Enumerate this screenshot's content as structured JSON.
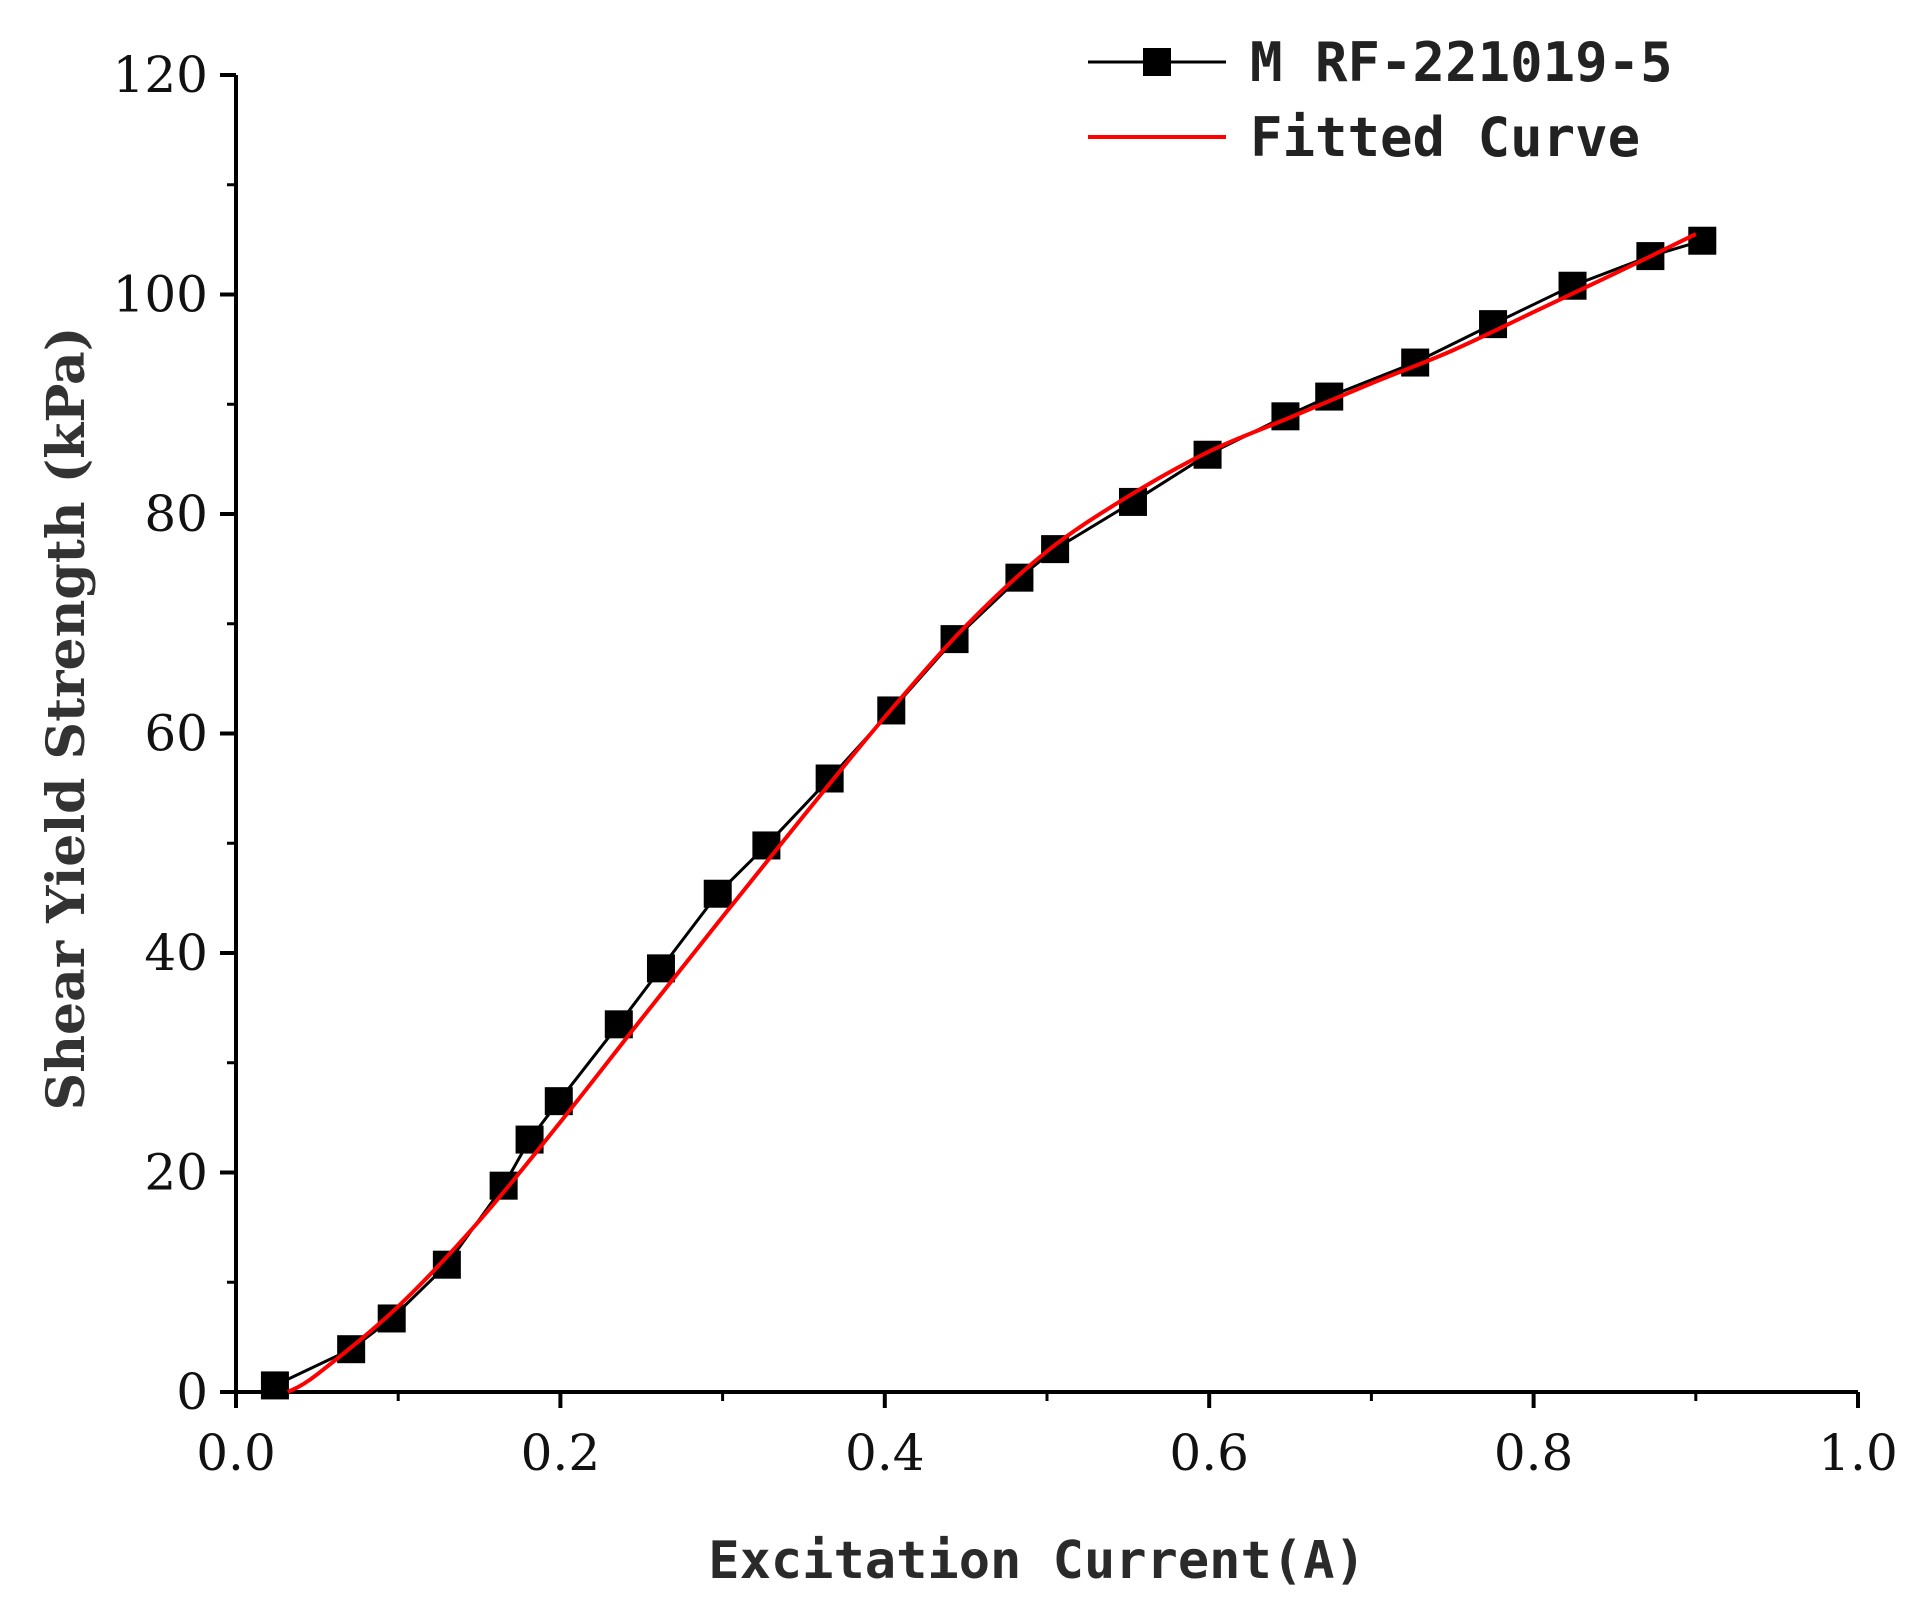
{
  "chart_data": {
    "type": "line",
    "xlabel": "Excitation Current(A)",
    "ylabel": "Shear Yield Strength (kPa)",
    "xlim": [
      0.0,
      1.0
    ],
    "ylim": [
      0,
      120
    ],
    "x_ticks": [
      0.0,
      0.2,
      0.4,
      0.6,
      0.8,
      1.0
    ],
    "x_tick_labels": [
      "0.0",
      "0.2",
      "0.4",
      "0.6",
      "0.8",
      "1.0"
    ],
    "y_ticks": [
      0,
      20,
      40,
      60,
      80,
      100,
      120
    ],
    "y_tick_labels": [
      "0",
      "20",
      "40",
      "60",
      "80",
      "100",
      "120"
    ],
    "grid": false,
    "legend_position": "top-right",
    "series": [
      {
        "name": "M RF-221019-5",
        "kind": "scatter-line",
        "marker": "square",
        "color": "#000000",
        "x": [
          0.024,
          0.071,
          0.096,
          0.13,
          0.165,
          0.181,
          0.199,
          0.236,
          0.262,
          0.297,
          0.327,
          0.366,
          0.404,
          0.443,
          0.483,
          0.505,
          0.553,
          0.599,
          0.647,
          0.674,
          0.727,
          0.775,
          0.824,
          0.872,
          0.904
        ],
        "y": [
          0.6,
          3.9,
          6.7,
          11.6,
          18.8,
          23.0,
          26.5,
          33.5,
          38.6,
          45.4,
          49.8,
          55.9,
          62.1,
          68.6,
          74.2,
          76.8,
          81.1,
          85.4,
          88.9,
          90.7,
          93.8,
          97.3,
          100.8,
          103.5,
          104.9
        ]
      },
      {
        "name": "Fitted Curve",
        "kind": "line",
        "color": "#ff0000",
        "x": [
          0.032,
          0.05,
          0.1,
          0.15,
          0.2,
          0.25,
          0.3,
          0.35,
          0.4,
          0.45,
          0.5,
          0.55,
          0.6,
          0.65,
          0.7,
          0.75,
          0.8,
          0.85,
          0.9
        ],
        "y": [
          0.0,
          1.6,
          7.8,
          15.6,
          24.6,
          34.0,
          43.3,
          52.5,
          61.5,
          69.8,
          76.6,
          81.6,
          85.7,
          88.8,
          91.9,
          94.9,
          98.4,
          101.9,
          105.5
        ]
      }
    ]
  }
}
